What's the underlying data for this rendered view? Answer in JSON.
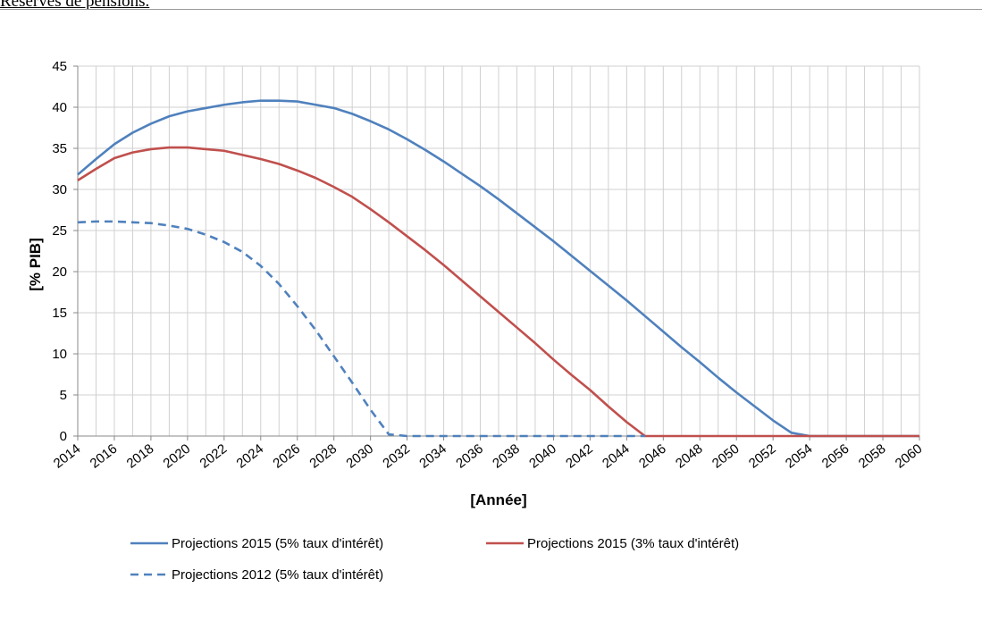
{
  "header": {
    "note": "Réserves de pensions."
  },
  "chart_data": {
    "type": "line",
    "title": "",
    "xlabel": "[Année]",
    "ylabel": "[% PIB]",
    "xlim": [
      2014,
      2060
    ],
    "ylim": [
      0,
      45
    ],
    "x_ticks": [
      "2014",
      "2016",
      "2018",
      "2020",
      "2022",
      "2024",
      "2026",
      "2028",
      "2030",
      "2032",
      "2034",
      "2036",
      "2038",
      "2040",
      "2042",
      "2044",
      "2046",
      "2048",
      "2050",
      "2052",
      "2054",
      "2056",
      "2058",
      "2060"
    ],
    "y_ticks": [
      "0",
      "5",
      "10",
      "15",
      "20",
      "25",
      "30",
      "35",
      "40",
      "45"
    ],
    "grid": true,
    "legend_position": "bottom",
    "series": [
      {
        "name": "Projections 2015 (5% taux d'intérêt)",
        "color": "#4f81bd",
        "style": "solid",
        "points": [
          [
            2014,
            31.8
          ],
          [
            2015,
            33.7
          ],
          [
            2016,
            35.5
          ],
          [
            2017,
            36.9
          ],
          [
            2018,
            38.0
          ],
          [
            2019,
            38.9
          ],
          [
            2020,
            39.5
          ],
          [
            2021,
            39.9
          ],
          [
            2022,
            40.3
          ],
          [
            2023,
            40.6
          ],
          [
            2024,
            40.8
          ],
          [
            2025,
            40.8
          ],
          [
            2026,
            40.7
          ],
          [
            2027,
            40.3
          ],
          [
            2028,
            39.9
          ],
          [
            2029,
            39.2
          ],
          [
            2030,
            38.3
          ],
          [
            2031,
            37.3
          ],
          [
            2032,
            36.1
          ],
          [
            2033,
            34.8
          ],
          [
            2034,
            33.4
          ],
          [
            2035,
            31.9
          ],
          [
            2036,
            30.4
          ],
          [
            2037,
            28.8
          ],
          [
            2038,
            27.1
          ],
          [
            2039,
            25.4
          ],
          [
            2040,
            23.7
          ],
          [
            2041,
            21.9
          ],
          [
            2042,
            20.1
          ],
          [
            2043,
            18.3
          ],
          [
            2044,
            16.5
          ],
          [
            2045,
            14.6
          ],
          [
            2046,
            12.7
          ],
          [
            2047,
            10.8
          ],
          [
            2048,
            9.0
          ],
          [
            2049,
            7.1
          ],
          [
            2050,
            5.3
          ],
          [
            2051,
            3.6
          ],
          [
            2052,
            1.9
          ],
          [
            2053,
            0.4
          ],
          [
            2054,
            0
          ],
          [
            2060,
            0
          ]
        ]
      },
      {
        "name": "Projections 2015 (3% taux d'intérêt)",
        "color": "#c0504d",
        "style": "solid",
        "points": [
          [
            2014,
            31.1
          ],
          [
            2015,
            32.5
          ],
          [
            2016,
            33.8
          ],
          [
            2017,
            34.5
          ],
          [
            2018,
            34.9
          ],
          [
            2019,
            35.1
          ],
          [
            2020,
            35.1
          ],
          [
            2021,
            34.9
          ],
          [
            2022,
            34.7
          ],
          [
            2023,
            34.2
          ],
          [
            2024,
            33.7
          ],
          [
            2025,
            33.1
          ],
          [
            2026,
            32.3
          ],
          [
            2027,
            31.4
          ],
          [
            2028,
            30.3
          ],
          [
            2029,
            29.1
          ],
          [
            2030,
            27.6
          ],
          [
            2031,
            26.0
          ],
          [
            2032,
            24.3
          ],
          [
            2033,
            22.6
          ],
          [
            2034,
            20.8
          ],
          [
            2035,
            18.9
          ],
          [
            2036,
            17.0
          ],
          [
            2037,
            15.1
          ],
          [
            2038,
            13.2
          ],
          [
            2039,
            11.3
          ],
          [
            2040,
            9.3
          ],
          [
            2041,
            7.4
          ],
          [
            2042,
            5.6
          ],
          [
            2043,
            3.6
          ],
          [
            2044,
            1.7
          ],
          [
            2045,
            0
          ],
          [
            2060,
            0
          ]
        ]
      },
      {
        "name": "Projections 2012 (5% taux d'intérêt)",
        "color": "#4f81bd",
        "style": "dashed",
        "points": [
          [
            2014,
            26.0
          ],
          [
            2015,
            26.1
          ],
          [
            2016,
            26.1
          ],
          [
            2017,
            26.0
          ],
          [
            2018,
            25.9
          ],
          [
            2019,
            25.6
          ],
          [
            2020,
            25.2
          ],
          [
            2021,
            24.5
          ],
          [
            2022,
            23.6
          ],
          [
            2023,
            22.4
          ],
          [
            2024,
            20.7
          ],
          [
            2025,
            18.5
          ],
          [
            2026,
            15.8
          ],
          [
            2027,
            12.9
          ],
          [
            2028,
            9.7
          ],
          [
            2029,
            6.5
          ],
          [
            2030,
            3.2
          ],
          [
            2031,
            0.2
          ],
          [
            2032,
            0
          ],
          [
            2045,
            0
          ]
        ]
      }
    ]
  }
}
